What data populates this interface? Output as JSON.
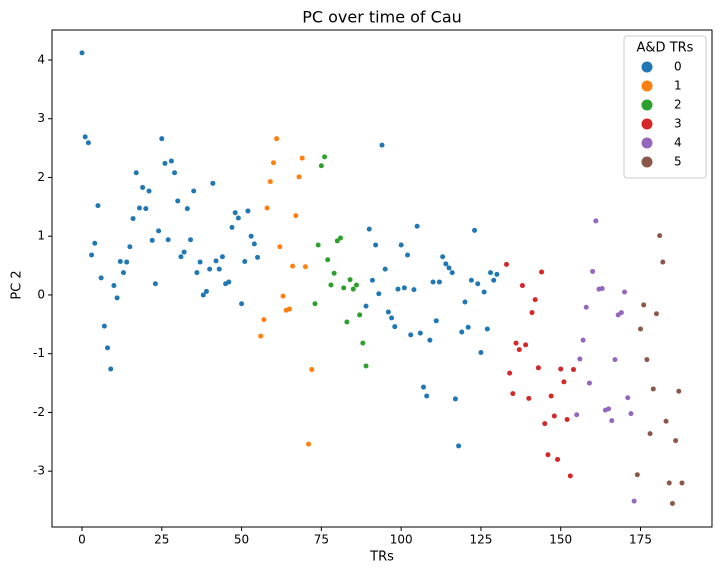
{
  "chart_data": {
    "type": "scatter",
    "title": "PC over time of Cau",
    "x_label": "TRs",
    "y_label": "PC 2",
    "legend_title": "A&D TRs",
    "legend_position": "upper right",
    "xlim": [
      -9.4,
      197.4
    ],
    "ylim": [
      -3.95,
      4.51
    ],
    "xticks": [
      0,
      25,
      50,
      75,
      100,
      125,
      150,
      175
    ],
    "yticks": [
      -3,
      -2,
      -1,
      0,
      1,
      2,
      3,
      4
    ],
    "series": [
      {
        "name": "0",
        "color": "#1f77b4",
        "x": [
          0,
          1,
          2,
          3,
          4,
          5,
          6,
          7,
          8,
          9,
          10,
          11,
          12,
          13,
          14,
          15,
          16,
          17,
          18,
          19,
          20,
          21,
          22,
          23,
          24,
          25,
          26,
          27,
          28,
          29,
          30,
          31,
          32,
          33,
          34,
          35,
          36,
          37,
          38,
          39,
          40,
          41,
          42,
          43,
          44,
          45,
          46,
          47,
          48,
          49,
          50,
          51,
          52,
          53,
          54,
          55,
          89,
          90,
          91,
          92,
          93,
          94,
          95,
          96,
          97,
          98,
          99,
          100,
          101,
          102,
          103,
          104,
          105,
          106,
          107,
          108,
          109,
          110,
          111,
          112,
          113,
          114,
          115,
          116,
          117,
          118,
          119,
          120,
          121,
          122,
          123,
          124,
          125,
          126,
          127,
          128,
          129,
          130
        ],
        "values": [
          4.12,
          2.69,
          2.59,
          0.68,
          0.88,
          1.52,
          0.29,
          -0.53,
          -0.9,
          -1.26,
          0.16,
          -0.05,
          0.57,
          0.38,
          0.56,
          0.82,
          1.3,
          2.08,
          1.48,
          1.83,
          1.47,
          1.77,
          0.93,
          0.19,
          1.09,
          2.66,
          2.24,
          0.94,
          2.28,
          2.08,
          1.6,
          0.65,
          0.73,
          1.47,
          0.94,
          1.77,
          0.38,
          0.56,
          0.0,
          0.06,
          0.44,
          1.9,
          0.58,
          0.44,
          0.65,
          0.19,
          0.22,
          1.15,
          1.4,
          1.31,
          -0.15,
          0.57,
          1.43,
          1.0,
          0.87,
          0.64,
          -0.19,
          1.12,
          0.25,
          0.85,
          0.02,
          2.55,
          0.44,
          -0.29,
          -0.39,
          -0.54,
          0.1,
          0.85,
          0.12,
          0.68,
          -0.68,
          0.09,
          1.17,
          -0.65,
          -1.57,
          -1.72,
          -0.77,
          0.22,
          -0.44,
          0.22,
          0.65,
          0.53,
          0.46,
          0.38,
          -1.77,
          -2.57,
          -0.63,
          -0.12,
          -0.55,
          0.25,
          1.1,
          0.19,
          -0.98,
          0.05,
          -0.58,
          0.38,
          0.25,
          0.35
        ]
      },
      {
        "name": "1",
        "color": "#ff7f0e",
        "x": [
          56,
          57,
          58,
          59,
          60,
          61,
          62,
          63,
          64,
          65,
          66,
          67,
          68,
          69,
          70,
          71,
          72
        ],
        "values": [
          -0.7,
          -0.42,
          1.48,
          1.93,
          2.25,
          2.66,
          0.82,
          -0.02,
          -0.26,
          -0.24,
          0.49,
          1.35,
          2.01,
          2.33,
          0.48,
          -2.54,
          -1.27
        ]
      },
      {
        "name": "2",
        "color": "#2ca02c",
        "x": [
          73,
          74,
          75,
          76,
          77,
          78,
          79,
          80,
          81,
          82,
          83,
          84,
          85,
          86,
          87,
          88,
          89
        ],
        "values": [
          -0.15,
          0.85,
          2.2,
          2.35,
          0.6,
          0.17,
          0.37,
          0.92,
          0.97,
          0.12,
          -0.46,
          0.26,
          0.1,
          0.17,
          -0.34,
          -0.82,
          -1.21
        ]
      },
      {
        "name": "3",
        "color": "#d62728",
        "x": [
          133,
          134,
          135,
          136,
          137,
          138,
          139,
          140,
          141,
          142,
          143,
          144,
          145,
          146,
          147,
          148,
          149,
          150,
          151,
          152,
          153,
          154
        ],
        "values": [
          0.52,
          -1.33,
          -1.68,
          -0.82,
          -0.93,
          0.16,
          -0.85,
          -1.76,
          -0.3,
          -0.08,
          -1.24,
          0.39,
          -2.19,
          -2.72,
          -1.72,
          -2.06,
          -2.8,
          -1.26,
          -1.48,
          -2.12,
          -3.08,
          -1.27
        ]
      },
      {
        "name": "4",
        "color": "#9467bd",
        "x": [
          155,
          156,
          157,
          158,
          159,
          160,
          161,
          162,
          163,
          164,
          165,
          166,
          167,
          168,
          169,
          170,
          171,
          172,
          173
        ],
        "values": [
          -2.04,
          -1.09,
          -0.77,
          -0.21,
          -1.5,
          0.4,
          1.26,
          0.1,
          0.11,
          -1.96,
          -1.94,
          -2.14,
          -1.1,
          -0.34,
          -0.3,
          0.05,
          -1.75,
          -2.02,
          -3.51
        ]
      },
      {
        "name": "5",
        "color": "#8c564b",
        "x": [
          174,
          175,
          176,
          177,
          178,
          179,
          180,
          181,
          182,
          183,
          184,
          185,
          186,
          187,
          188
        ],
        "values": [
          -3.06,
          -0.58,
          -0.17,
          -1.1,
          -2.36,
          -1.6,
          -0.32,
          1.01,
          0.56,
          -2.15,
          -3.2,
          -3.55,
          -2.48,
          -1.64,
          -3.2
        ]
      }
    ]
  }
}
